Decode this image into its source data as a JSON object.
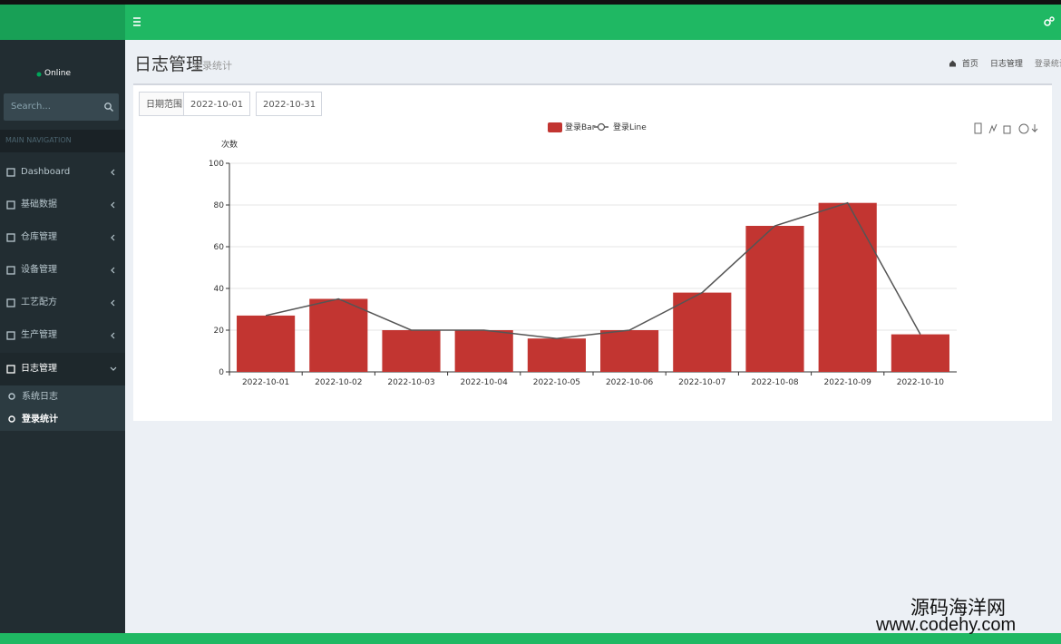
{
  "sidebar": {
    "status": "Online",
    "search_placeholder": "Search...",
    "nav_header": "MAIN NAVIGATION",
    "menu": [
      "Dashboard",
      "基础数据",
      "仓库管理",
      "设备管理",
      "工艺配方",
      "生产管理",
      "日志管理"
    ],
    "submenu": [
      "系统日志",
      "登录统计"
    ]
  },
  "header": {
    "title": "日志管理",
    "subtitle": "登录统计",
    "breadcrumb": [
      "首页",
      "日志管理",
      "登录统计"
    ]
  },
  "filter": {
    "label": "日期范围",
    "start": "2022-10-01",
    "end": "2022-10-31"
  },
  "chart_data": {
    "type": "bar",
    "y_axis_label": "次数",
    "categories": [
      "2022-10-01",
      "2022-10-02",
      "2022-10-03",
      "2022-10-04",
      "2022-10-05",
      "2022-10-06",
      "2022-10-07",
      "2022-10-08",
      "2022-10-09",
      "2022-10-10"
    ],
    "series": [
      {
        "name": "登录Bar",
        "type": "bar",
        "color": "#c23531",
        "values": [
          27,
          35,
          20,
          20,
          16,
          20,
          38,
          70,
          81,
          18
        ]
      },
      {
        "name": "登录Line",
        "type": "line",
        "color": "#555555",
        "values": [
          27,
          35,
          20,
          20,
          16,
          20,
          38,
          70,
          81,
          18
        ]
      }
    ],
    "ylim": [
      0,
      100
    ],
    "yticks": [
      0,
      20,
      40,
      60,
      80,
      100
    ],
    "grid": true
  },
  "watermark": {
    "line1": "源码海洋网",
    "line2": "www.codehy.com"
  }
}
